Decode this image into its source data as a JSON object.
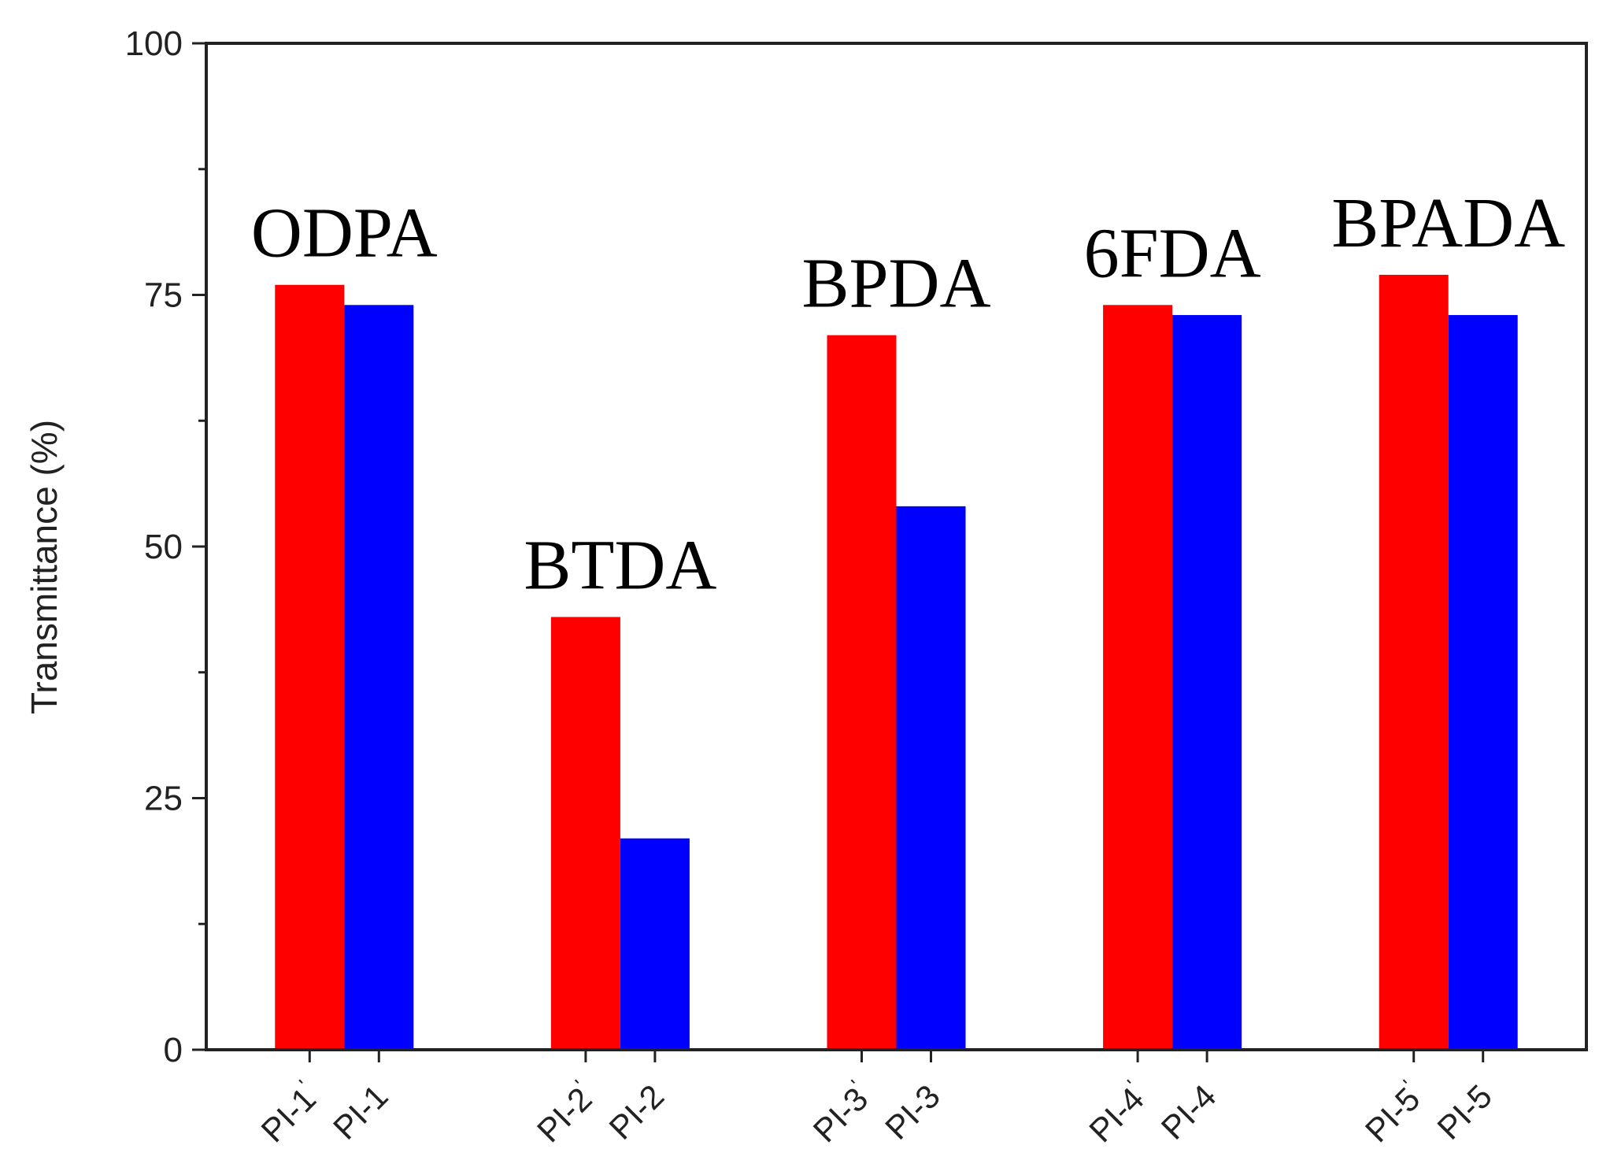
{
  "chart_data": {
    "type": "bar",
    "title": "",
    "xlabel": "",
    "ylabel": "Transmittance (%)",
    "ylim": [
      0,
      100
    ],
    "yticks": [
      0,
      25,
      50,
      75,
      100
    ],
    "grid": false,
    "legend": "none",
    "colors": {
      "primed": "#ff0000",
      "plain": "#0000ff",
      "axis": "#222222"
    },
    "groups": [
      {
        "label": "ODPA",
        "bars": [
          {
            "category": "PI-1",
            "prime": true,
            "value": 76
          },
          {
            "category": "PI-1",
            "prime": false,
            "value": 74
          }
        ]
      },
      {
        "label": "BTDA",
        "bars": [
          {
            "category": "PI-2",
            "prime": true,
            "value": 43
          },
          {
            "category": "PI-2",
            "prime": false,
            "value": 21
          }
        ]
      },
      {
        "label": "BPDA",
        "bars": [
          {
            "category": "PI-3",
            "prime": true,
            "value": 71
          },
          {
            "category": "PI-3",
            "prime": false,
            "value": 54
          }
        ]
      },
      {
        "label": "6FDA",
        "bars": [
          {
            "category": "PI-4",
            "prime": true,
            "value": 74
          },
          {
            "category": "PI-4",
            "prime": false,
            "value": 73
          }
        ]
      },
      {
        "label": "BPADA",
        "bars": [
          {
            "category": "PI-5",
            "prime": true,
            "value": 77
          },
          {
            "category": "PI-5",
            "prime": false,
            "value": 73
          }
        ]
      }
    ],
    "prime_mark": "'"
  }
}
